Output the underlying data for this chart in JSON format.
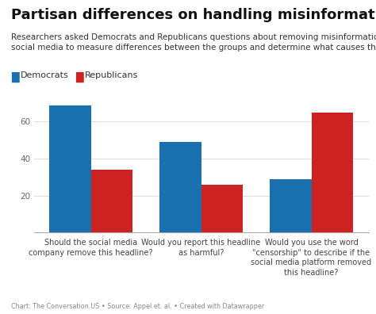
{
  "title": "Partisan differences on handling misinformation",
  "subtitle": "Researchers asked Democrats and Republicans questions about removing misinformation from\nsocial media to measure differences between the groups and determine what causes them.",
  "categories": [
    "Should the social media\ncompany remove this headline?",
    "Would you report this headline\nas harmful?",
    "Would you use the word\n\"censorship\" to describe if the\nsocial media platform removed\nthis headline?"
  ],
  "democrats": [
    69,
    49,
    29
  ],
  "republicans": [
    34,
    26,
    65
  ],
  "democrat_color": "#1a6faf",
  "republican_color": "#cc2222",
  "ylim": [
    0,
    80
  ],
  "yticks": [
    20,
    40,
    60
  ],
  "bar_width": 0.38,
  "footnote": "Chart: The Conversation US • Source: Appel et. al. • Created with Datawrapper",
  "background_color": "#ffffff",
  "legend_labels": [
    "Democrats",
    "Republicans"
  ],
  "title_fontsize": 13,
  "subtitle_fontsize": 7.5,
  "legend_fontsize": 8,
  "xtick_fontsize": 7,
  "ytick_fontsize": 7.5,
  "footnote_fontsize": 5.8
}
